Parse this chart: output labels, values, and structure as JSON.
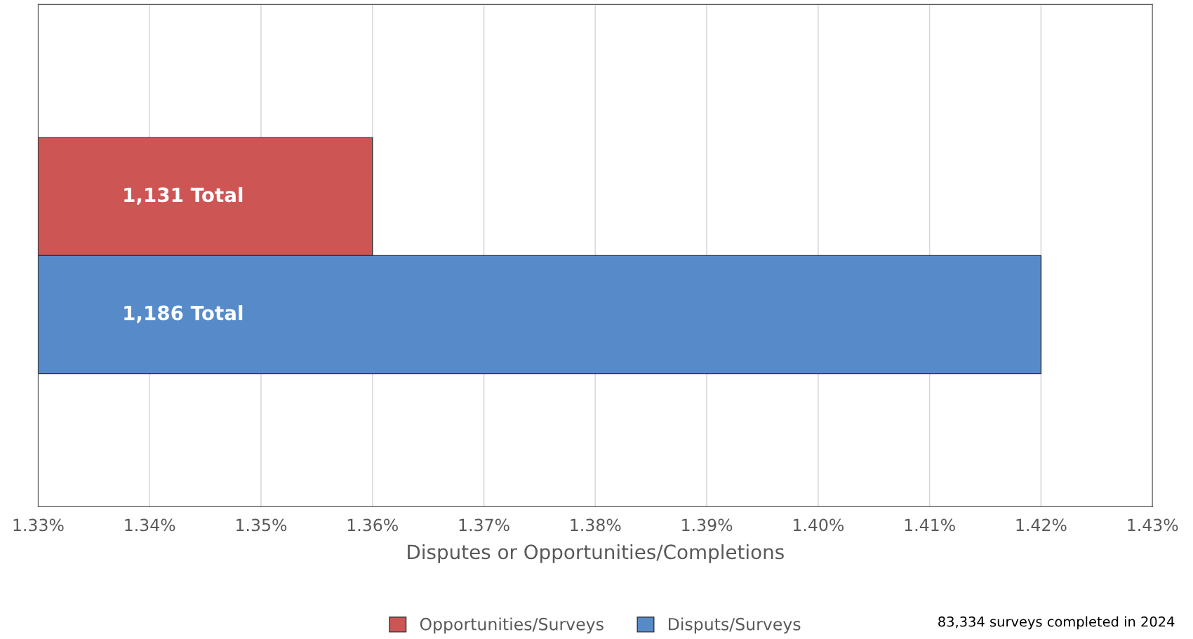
{
  "chart_data": {
    "type": "bar",
    "orientation": "horizontal",
    "categories": [
      null
    ],
    "series": [
      {
        "name": "Opportunities/Surveys",
        "color": "#cd5654",
        "values": [
          1.36
        ]
      },
      {
        "name": "Disputs/Surveys",
        "color": "#578ac9",
        "values": [
          1.42
        ]
      }
    ],
    "xlim": [
      1.33,
      1.43
    ],
    "xticks": [
      {
        "value": 1.33,
        "label": "1.33%"
      },
      {
        "value": 1.34,
        "label": "1.34%"
      },
      {
        "value": 1.35,
        "label": "1.35%"
      },
      {
        "value": 1.36,
        "label": "1.36%"
      },
      {
        "value": 1.37,
        "label": "1.37%"
      },
      {
        "value": 1.38,
        "label": "1.38%"
      },
      {
        "value": 1.39,
        "label": "1.39%"
      },
      {
        "value": 1.4,
        "label": "1.40%"
      },
      {
        "value": 1.41,
        "label": "1.41%"
      },
      {
        "value": 1.42,
        "label": "1.42%"
      },
      {
        "value": 1.43,
        "label": "1.43%"
      }
    ],
    "xlabel": "Disputes or Opportunities/Completions",
    "grid": "x",
    "legend": "bottom",
    "annotations": [
      "1,131 Total",
      "1,186 Total",
      "83,334 surveys completed in 2024"
    ]
  }
}
